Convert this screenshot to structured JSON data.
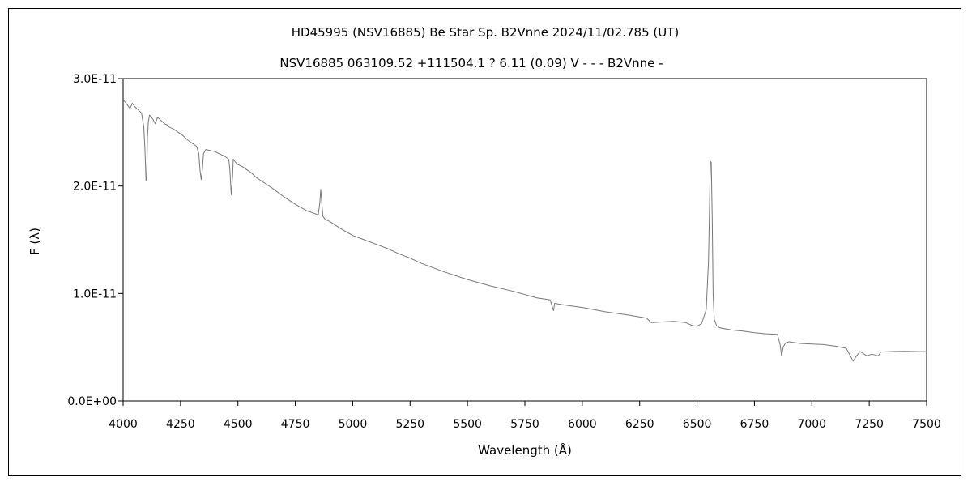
{
  "chart_data": {
    "type": "line",
    "title": "HD45995 (NSV16885)   Be Star   Sp. B2Vnne    2024/11/02.785 (UT)",
    "subtitle": "NSV16885 063109.52 +111504.1 ? 6.11 (0.09) V - - - B2Vnne -",
    "xlabel": "Wavelength (Å)",
    "ylabel": "F (λ)",
    "xlim": [
      4000,
      7500
    ],
    "ylim": [
      0,
      3e-11
    ],
    "xticks": [
      "4000",
      "4250",
      "4500",
      "4750",
      "5000",
      "5250",
      "5500",
      "5750",
      "6000",
      "6250",
      "6500",
      "6750",
      "7000",
      "7250",
      "7500"
    ],
    "yticks": [
      "0.0E+00",
      "1.0E-11",
      "2.0E-11",
      "3.0E-11"
    ],
    "grid": false,
    "series": [
      {
        "color": "#777777",
        "x": [
          4000,
          4010,
          4020,
          4030,
          4040,
          4050,
          4060,
          4070,
          4080,
          4090,
          4095,
          4100,
          4103,
          4106,
          4110,
          4115,
          4120,
          4130,
          4140,
          4150,
          4160,
          4170,
          4180,
          4190,
          4200,
          4220,
          4240,
          4260,
          4280,
          4300,
          4320,
          4330,
          4335,
          4340,
          4345,
          4350,
          4360,
          4380,
          4400,
          4420,
          4440,
          4460,
          4465,
          4471,
          4477,
          4480,
          4490,
          4500,
          4520,
          4540,
          4560,
          4580,
          4600,
          4650,
          4700,
          4750,
          4800,
          4840,
          4850,
          4857,
          4861,
          4865,
          4870,
          4880,
          4900,
          4950,
          5000,
          5050,
          5100,
          5150,
          5200,
          5250,
          5300,
          5400,
          5500,
          5600,
          5700,
          5800,
          5860,
          5875,
          5880,
          5900,
          6000,
          6100,
          6200,
          6280,
          6300,
          6400,
          6450,
          6480,
          6500,
          6520,
          6540,
          6550,
          6555,
          6558,
          6562,
          6566,
          6570,
          6575,
          6585,
          6600,
          6650,
          6700,
          6750,
          6800,
          6850,
          6862,
          6868,
          6875,
          6885,
          6900,
          6950,
          7000,
          7050,
          7100,
          7150,
          7165,
          7180,
          7195,
          7210,
          7240,
          7260,
          7290,
          7300,
          7350,
          7400,
          7450,
          7500
        ],
        "y": [
          2.8e-11,
          2.78e-11,
          2.75e-11,
          2.72e-11,
          2.77e-11,
          2.74e-11,
          2.72e-11,
          2.7e-11,
          2.68e-11,
          2.55e-11,
          2.35e-11,
          2.05e-11,
          2.1e-11,
          2.45e-11,
          2.6e-11,
          2.66e-11,
          2.65e-11,
          2.62e-11,
          2.58e-11,
          2.64e-11,
          2.62e-11,
          2.6e-11,
          2.58e-11,
          2.57e-11,
          2.55e-11,
          2.53e-11,
          2.5e-11,
          2.47e-11,
          2.43e-11,
          2.4e-11,
          2.37e-11,
          2.3e-11,
          2.15e-11,
          2.06e-11,
          2.15e-11,
          2.3e-11,
          2.34e-11,
          2.33e-11,
          2.32e-11,
          2.3e-11,
          2.28e-11,
          2.25e-11,
          2.15e-11,
          1.92e-11,
          2.1e-11,
          2.25e-11,
          2.22e-11,
          2.2e-11,
          2.18e-11,
          2.15e-11,
          2.12e-11,
          2.08e-11,
          2.05e-11,
          1.98e-11,
          1.9e-11,
          1.83e-11,
          1.77e-11,
          1.74e-11,
          1.73e-11,
          1.85e-11,
          1.97e-11,
          1.85e-11,
          1.72e-11,
          1.69e-11,
          1.67e-11,
          1.6e-11,
          1.54e-11,
          1.5e-11,
          1.46e-11,
          1.42e-11,
          1.37e-11,
          1.33e-11,
          1.28e-11,
          1.2e-11,
          1.13e-11,
          1.07e-11,
          1.02e-11,
          9.6e-12,
          9.4e-12,
          8.4e-12,
          9.1e-12,
          9e-12,
          8.7e-12,
          8.3e-12,
          8e-12,
          7.7e-12,
          7.3e-12,
          7.4e-12,
          7.3e-12,
          7e-12,
          6.95e-12,
          7.2e-12,
          8.5e-12,
          1.3e-11,
          1.9e-11,
          2.23e-11,
          2.22e-11,
          1.7e-11,
          1e-11,
          7.6e-12,
          7e-12,
          6.8e-12,
          6.6e-12,
          6.5e-12,
          6.35e-12,
          6.25e-12,
          6.2e-12,
          5.2e-12,
          4.2e-12,
          5e-12,
          5.4e-12,
          5.5e-12,
          5.35e-12,
          5.3e-12,
          5.25e-12,
          5.1e-12,
          4.9e-12,
          4.3e-12,
          3.7e-12,
          4.2e-12,
          4.6e-12,
          4.2e-12,
          4.35e-12,
          4.2e-12,
          4.55e-12,
          4.6e-12,
          4.62e-12,
          4.6e-12,
          4.58e-12
        ]
      }
    ]
  }
}
